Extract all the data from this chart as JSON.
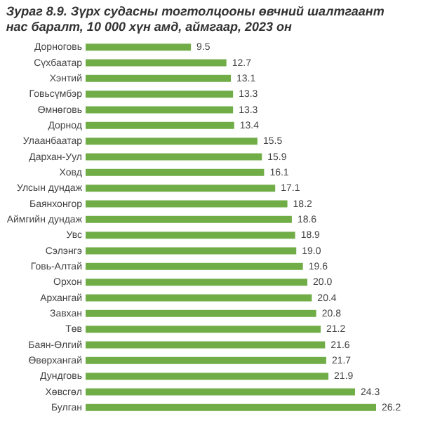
{
  "chart_data": {
    "type": "bar",
    "orientation": "horizontal",
    "title": "Зураг 8.9. Зүрх судасны тогтолцооны өвчний шалтгаант нас баралт, 10 000 хүн амд, аймгаар, 2023 он",
    "categories": [
      "Дорноговь",
      "Сүхбаатар",
      "Хэнтий",
      "Говьсүмбэр",
      "Өмнөговь",
      "Дорнод",
      "Улаанбаатар",
      "Дархан-Уул",
      "Ховд",
      "Улсын дундаж",
      "Баянхонгор",
      "Аймгийн дундаж",
      "Увс",
      "Сэлэнгэ",
      "Говь-Алтай",
      "Орхон",
      "Архангай",
      "Завхан",
      "Төв",
      "Баян-Өлгий",
      "Өвөрхангай",
      "Дундговь",
      "Хөвсгөл",
      "Булган"
    ],
    "values": [
      9.5,
      12.7,
      13.1,
      13.3,
      13.3,
      13.4,
      15.5,
      15.9,
      16.1,
      17.1,
      18.2,
      18.6,
      18.9,
      19.0,
      19.6,
      20.0,
      20.4,
      20.8,
      21.2,
      21.6,
      21.7,
      21.9,
      24.3,
      26.2
    ],
    "value_labels": [
      "9.5",
      "12.7",
      "13.1",
      "13.3",
      "13.3",
      "13.4",
      "15.5",
      "15.9",
      "16.1",
      "17.1",
      "18.2",
      "18.6",
      "18.9",
      "19.0",
      "19.6",
      "20.0",
      "20.4",
      "20.8",
      "21.2",
      "21.6",
      "21.7",
      "21.9",
      "24.3",
      "26.2"
    ],
    "color": "#70ad47"
  }
}
